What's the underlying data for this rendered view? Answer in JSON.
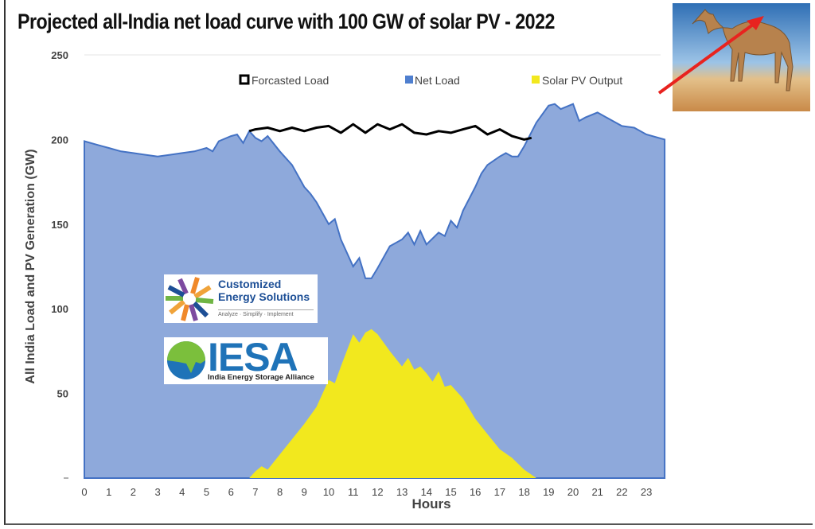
{
  "chart_data": {
    "type": "area",
    "title": "Projected all-India net load curve with 100 GW of solar PV - 2022",
    "xlabel": "Hours",
    "ylabel": "All India Load and PV Generation (GW)",
    "xlim": [
      0,
      24
    ],
    "ylim": [
      0,
      250
    ],
    "x_ticks": [
      "0",
      "1",
      "2",
      "3",
      "4",
      "5",
      "6",
      "7",
      "8",
      "9",
      "10",
      "11",
      "12",
      "13",
      "14",
      "15",
      "16",
      "17",
      "18",
      "19",
      "20",
      "21",
      "22",
      "23"
    ],
    "y_ticks": [
      "50",
      "100",
      "150",
      "200",
      "250"
    ],
    "grid": "horizontal line at 250 only",
    "legend_position": "top",
    "series": [
      {
        "name": "Forcasted Load",
        "color": "#000000",
        "style": "line",
        "x": [
          6.75,
          7,
          7.5,
          8,
          8.5,
          9,
          9.5,
          10,
          10.5,
          11,
          11.5,
          12,
          12.5,
          13,
          13.5,
          14,
          14.5,
          15,
          15.5,
          16,
          16.5,
          17,
          17.5,
          18,
          18.3
        ],
        "y": [
          205,
          206,
          207,
          205,
          207,
          205,
          207,
          208,
          204,
          209,
          204,
          209,
          206,
          209,
          204,
          203,
          205,
          204,
          206,
          208,
          203,
          206,
          202,
          200,
          201
        ]
      },
      {
        "name": "Net Load",
        "color": "#8ea9db",
        "style": "area",
        "x": [
          0,
          0.5,
          1,
          1.5,
          2,
          2.5,
          3,
          3.5,
          4,
          4.5,
          5,
          5.25,
          5.5,
          6,
          6.25,
          6.5,
          6.75,
          7,
          7.25,
          7.5,
          8,
          8.5,
          9,
          9.25,
          9.5,
          10,
          10.25,
          10.5,
          11,
          11.25,
          11.5,
          11.75,
          12,
          12.5,
          13,
          13.25,
          13.5,
          13.75,
          14,
          14.5,
          14.75,
          15,
          15.25,
          15.5,
          16,
          16.25,
          16.5,
          17,
          17.25,
          17.5,
          17.75,
          18,
          18.5,
          19,
          19.25,
          19.5,
          20,
          20.25,
          20.5,
          21,
          21.5,
          22,
          22.5,
          23,
          23.75
        ],
        "y": [
          199,
          197,
          195,
          193,
          192,
          191,
          190,
          191,
          192,
          193,
          195,
          193,
          199,
          202,
          203,
          198,
          205,
          201,
          199,
          202,
          193,
          185,
          172,
          168,
          163,
          150,
          153,
          141,
          125,
          130,
          118,
          118,
          124,
          137,
          141,
          145,
          138,
          146,
          138,
          145,
          143,
          152,
          148,
          158,
          172,
          180,
          185,
          190,
          192,
          190,
          190,
          196,
          210,
          220,
          221,
          218,
          221,
          211,
          213,
          216,
          212,
          208,
          207,
          203,
          200
        ]
      },
      {
        "name": "Solar PV Output",
        "color": "#f2e81e",
        "style": "area",
        "x": [
          6.75,
          7,
          7.25,
          7.5,
          8,
          8.5,
          9,
          9.5,
          10,
          10.25,
          10.5,
          11,
          11.25,
          11.5,
          11.75,
          12,
          12.5,
          13,
          13.25,
          13.5,
          13.75,
          14,
          14.25,
          14.5,
          14.75,
          15,
          15.5,
          16,
          16.5,
          17,
          17.5,
          18,
          18.5
        ],
        "y": [
          0,
          4,
          7,
          5,
          14,
          23,
          32,
          42,
          58,
          56,
          66,
          85,
          80,
          86,
          88,
          85,
          75,
          66,
          71,
          64,
          66,
          62,
          57,
          63,
          54,
          55,
          47,
          35,
          26,
          17,
          12,
          5,
          0
        ]
      }
    ]
  },
  "logos": {
    "ces_name": "Customized Energy Solutions",
    "ces_tagline": "Analyze · Simplify · Implement",
    "iesa_name": "IESA",
    "iesa_full": "India Energy Storage Alliance"
  },
  "colors": {
    "net_load": "#8ea9db",
    "net_load_edge": "#4472c4",
    "solar": "#f2e81e",
    "forecast": "#000000",
    "arrow": "#e8231f"
  }
}
